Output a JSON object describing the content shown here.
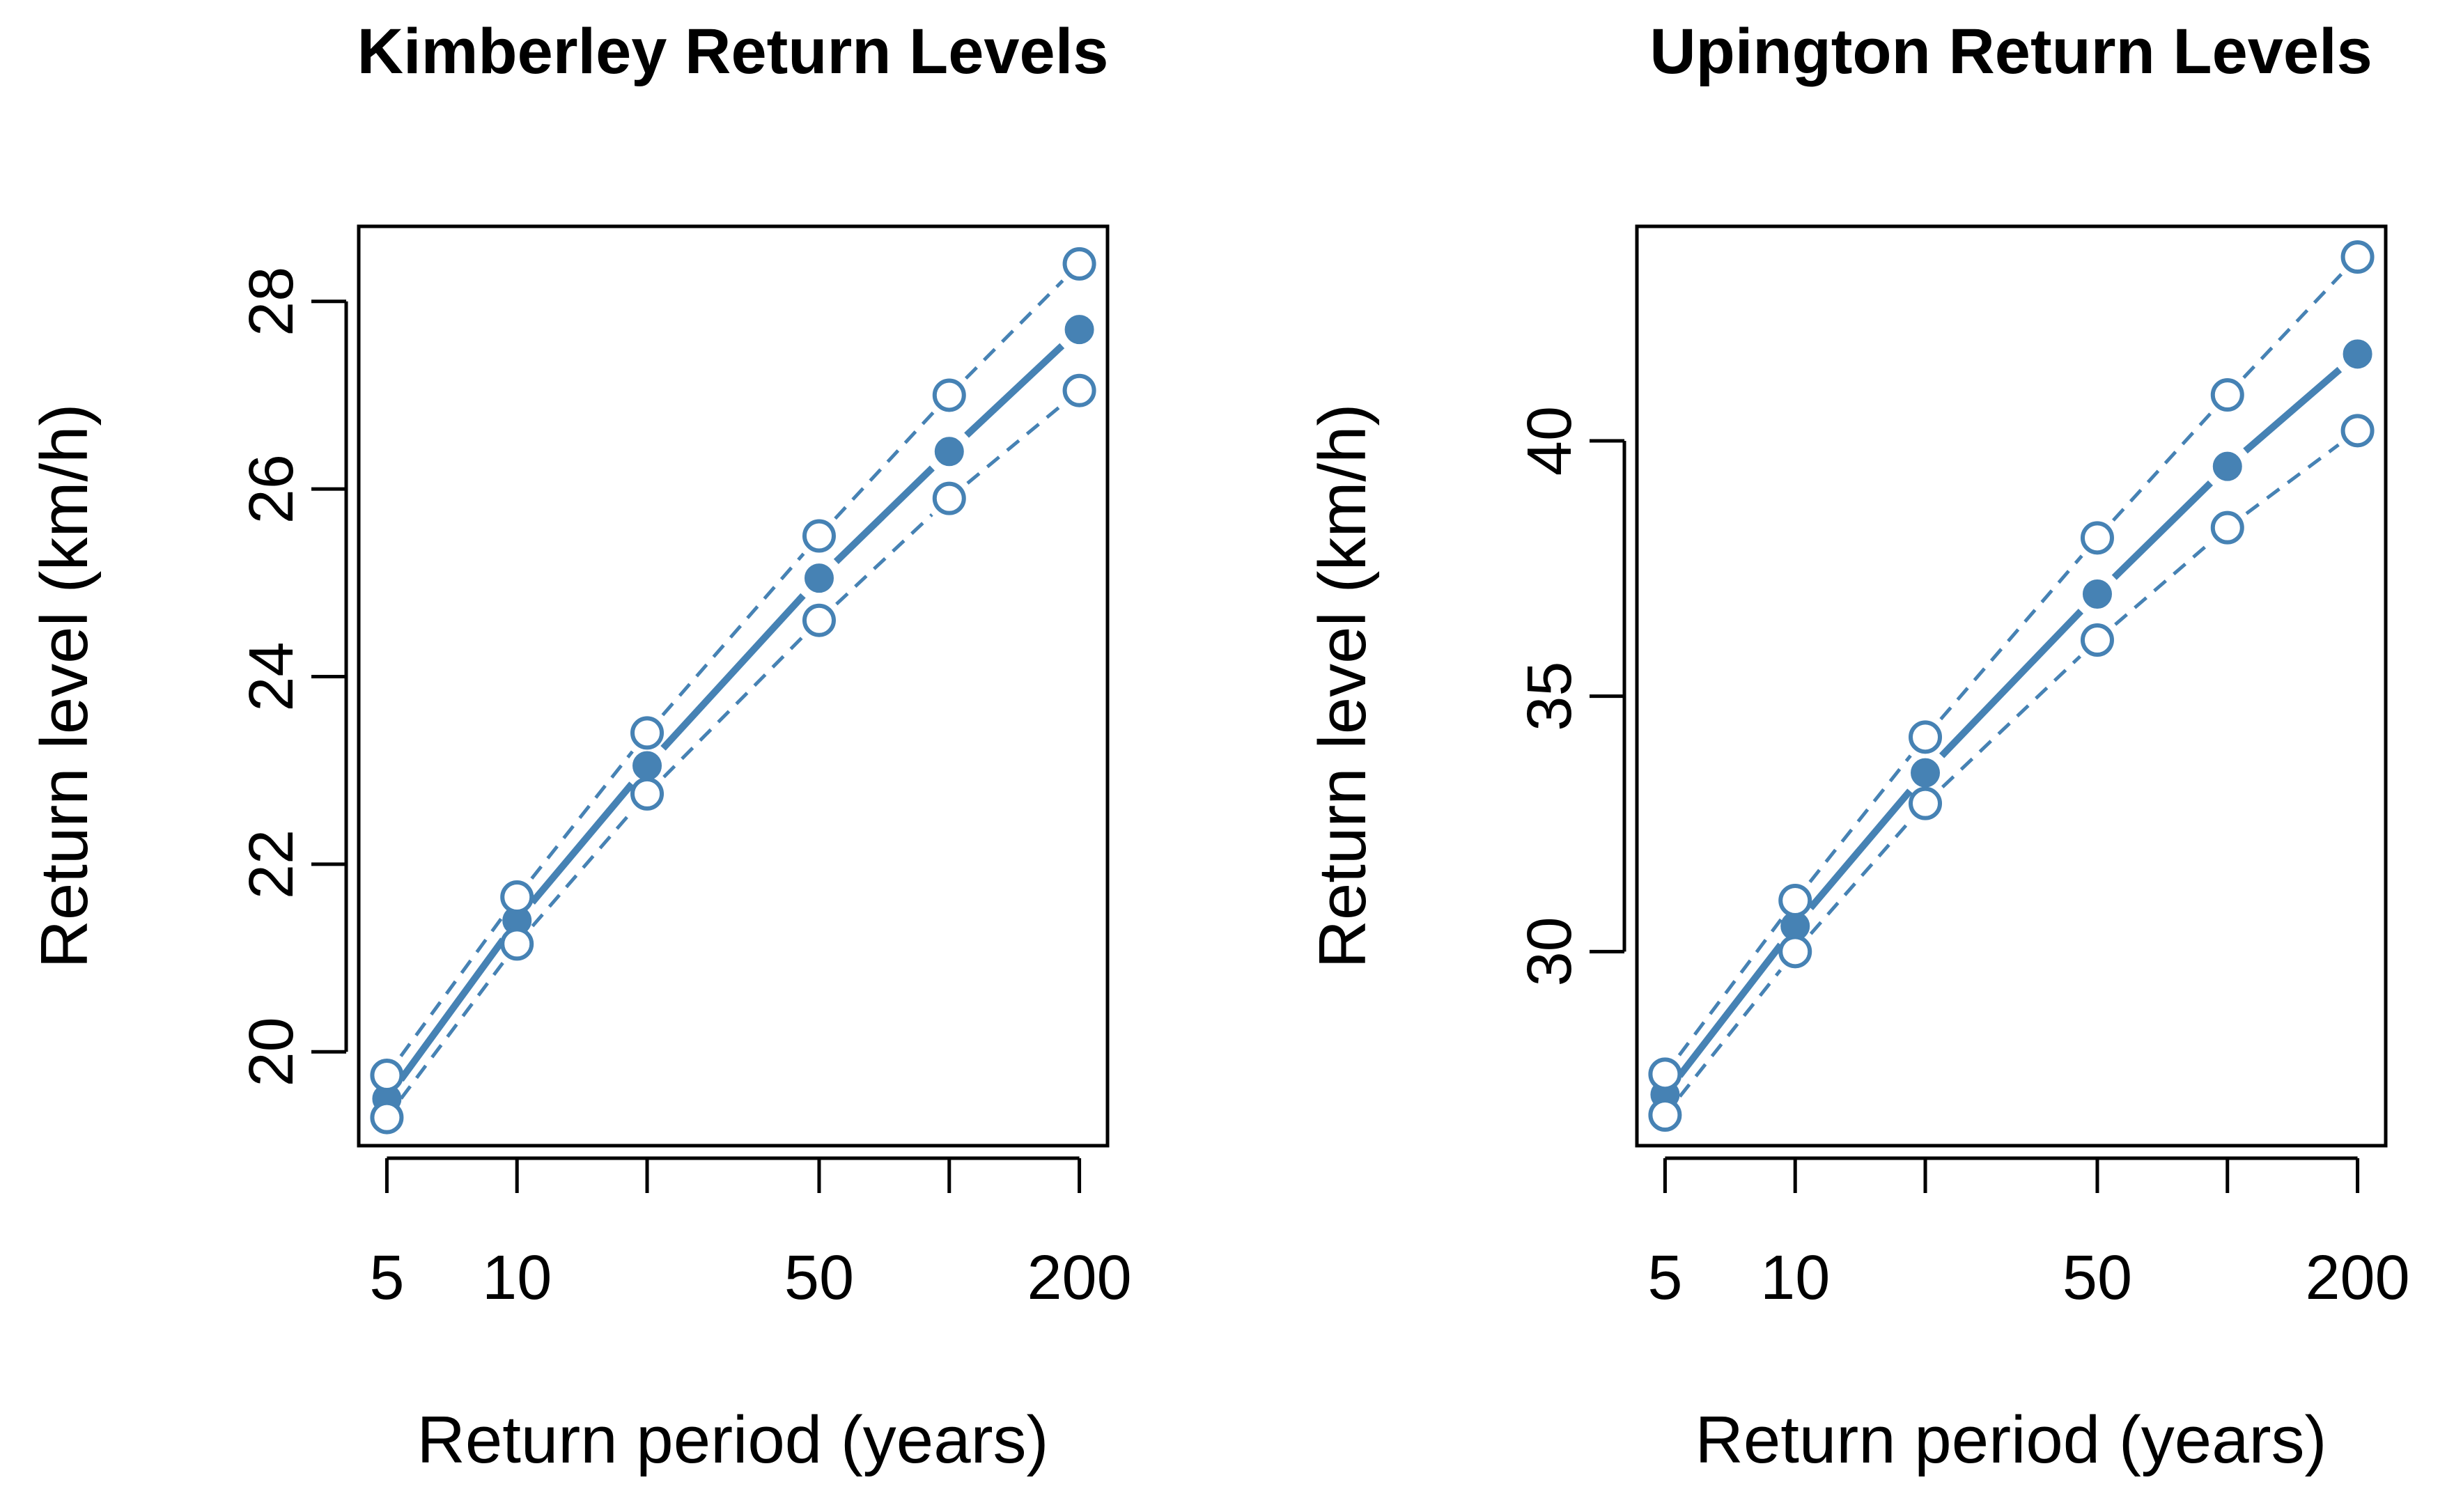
{
  "colors": {
    "series": "#4682B4",
    "axis": "#000000",
    "background": "#FFFFFF"
  },
  "chart_data": [
    {
      "type": "line",
      "title": "Kimberley Return Levels",
      "xlabel": "Return period (years)",
      "ylabel": "Return level (km/h)",
      "x_scale": "log",
      "x": [
        5,
        10,
        20,
        50,
        100,
        200
      ],
      "x_tick_labels": [
        "5",
        "10",
        "",
        "50",
        "",
        "200"
      ],
      "ylim": [
        19.0,
        28.8
      ],
      "y_ticks": [
        20,
        22,
        24,
        26,
        28
      ],
      "series": [
        {
          "role": "estimate",
          "marker": "filled-circle",
          "line": "solid",
          "values": [
            19.5,
            21.4,
            23.05,
            25.05,
            26.4,
            27.7
          ]
        },
        {
          "role": "upper",
          "marker": "open-circle",
          "line": "dashed",
          "values": [
            19.75,
            21.65,
            23.4,
            25.5,
            27.0,
            28.4
          ]
        },
        {
          "role": "lower",
          "marker": "open-circle",
          "line": "dashed",
          "values": [
            19.3,
            21.15,
            22.75,
            24.6,
            25.9,
            27.05
          ]
        }
      ]
    },
    {
      "type": "line",
      "title": "Upington Return Levels",
      "xlabel": "Return period (years)",
      "ylabel": "Return level (km/h)",
      "x_scale": "log",
      "x": [
        5,
        10,
        20,
        50,
        100,
        200
      ],
      "x_tick_labels": [
        "5",
        "10",
        "",
        "50",
        "",
        "200"
      ],
      "ylim": [
        26.2,
        44.2
      ],
      "y_ticks": [
        30,
        35,
        40
      ],
      "series": [
        {
          "role": "estimate",
          "marker": "filled-circle",
          "line": "solid",
          "values": [
            27.2,
            30.5,
            33.5,
            37.0,
            39.5,
            41.7
          ]
        },
        {
          "role": "upper",
          "marker": "open-circle",
          "line": "dashed",
          "values": [
            27.6,
            31.0,
            34.2,
            38.1,
            40.9,
            43.6
          ]
        },
        {
          "role": "lower",
          "marker": "open-circle",
          "line": "dashed",
          "values": [
            26.8,
            30.0,
            32.9,
            36.1,
            38.3,
            40.2
          ]
        }
      ]
    }
  ]
}
